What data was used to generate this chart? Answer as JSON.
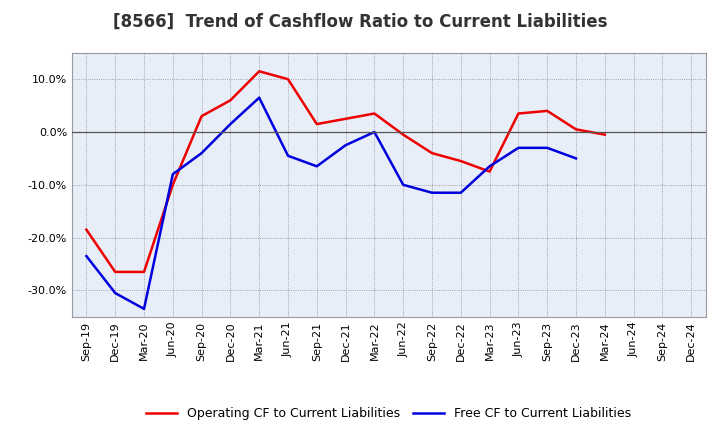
{
  "title": "[8566]  Trend of Cashflow Ratio to Current Liabilities",
  "x_labels": [
    "Sep-19",
    "Dec-19",
    "Mar-20",
    "Jun-20",
    "Sep-20",
    "Dec-20",
    "Mar-21",
    "Jun-21",
    "Sep-21",
    "Dec-21",
    "Mar-22",
    "Jun-22",
    "Sep-22",
    "Dec-22",
    "Mar-23",
    "Jun-23",
    "Sep-23",
    "Dec-23",
    "Mar-24",
    "Jun-24",
    "Sep-24",
    "Dec-24"
  ],
  "operating_cf": [
    -0.185,
    -0.265,
    -0.265,
    -0.1,
    0.03,
    0.06,
    0.115,
    0.1,
    0.015,
    0.025,
    0.035,
    -0.005,
    -0.04,
    -0.055,
    -0.075,
    0.035,
    0.04,
    0.005,
    -0.005,
    null,
    null,
    null
  ],
  "free_cf": [
    -0.235,
    -0.305,
    -0.335,
    -0.08,
    -0.04,
    0.015,
    0.065,
    -0.045,
    -0.065,
    -0.025,
    0.0,
    -0.1,
    -0.115,
    -0.115,
    -0.065,
    -0.03,
    -0.03,
    -0.05,
    null,
    null,
    null,
    null
  ],
  "operating_cf_color": "#ee0000",
  "free_cf_color": "#0000dd",
  "ylim": [
    -0.35,
    0.15
  ],
  "yticks": [
    -0.3,
    -0.2,
    -0.1,
    0.0,
    0.1
  ],
  "background_color": "#ffffff",
  "plot_bg_color": "#e8eef8",
  "grid_color": "#888899",
  "legend_labels": [
    "Operating CF to Current Liabilities",
    "Free CF to Current Liabilities"
  ],
  "title_fontsize": 12,
  "label_fontsize": 8,
  "legend_fontsize": 9,
  "line_width": 1.8
}
